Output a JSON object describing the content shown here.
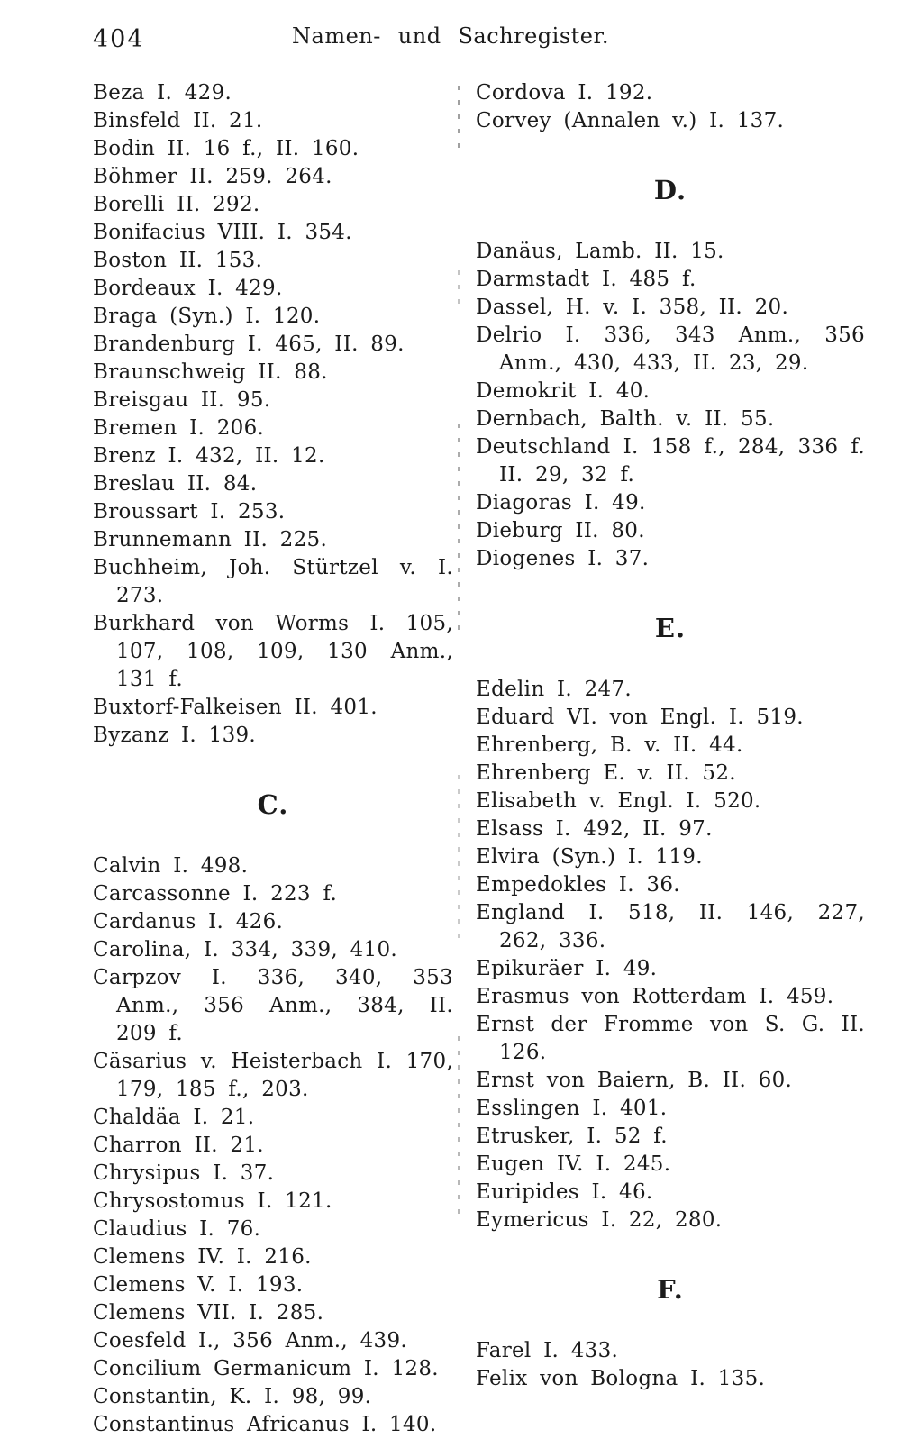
{
  "page": {
    "number": "404",
    "running_head": "Namen- und Sachregister."
  },
  "left_column": {
    "sections": [
      {
        "heading": null,
        "entries": [
          "Beza I. 429.",
          "Binsfeld II. 21.",
          "Bodin II. 16 f., II. 160.",
          "Böhmer II. 259. 264.",
          "Borelli II. 292.",
          "Bonifacius VIII. I. 354.",
          "Boston II. 153.",
          "Bordeaux I. 429.",
          "Braga (Syn.) I. 120.",
          "Brandenburg I. 465, II. 89.",
          "Braunschweig II. 88.",
          "Breisgau II. 95.",
          "Bremen I. 206.",
          "Brenz I. 432, II. 12.",
          "Breslau II. 84.",
          "Broussart I. 253.",
          "Brunnemann II. 225.",
          "Buchheim, Joh. Stürtzel v. I. 273.",
          "Burkhard von Worms I. 105, 107, 108, 109, 130 Anm., 131 f.",
          "Buxtorf-Falkeisen II. 401.",
          "Byzanz I. 139."
        ]
      },
      {
        "heading": "C.",
        "entries": [
          "Calvin I. 498.",
          "Carcassonne I. 223 f.",
          "Cardanus I. 426.",
          "Carolina, I. 334, 339, 410.",
          "Carpzov I. 336, 340, 353 Anm., 356 Anm., 384, II. 209 f.",
          "Cäsarius v. Heisterbach I. 170, 179, 185 f., 203.",
          "Chaldäa I. 21.",
          "Charron II. 21.",
          "Chrysipus I. 37.",
          "Chrysostomus I. 121.",
          "Claudius I. 76.",
          "Clemens IV. I. 216.",
          "Clemens V. I. 193.",
          "Clemens VII. I. 285.",
          "Coesfeld I., 356 Anm., 439.",
          "Concilium Germanicum I. 128.",
          "Constantin, K. I. 98, 99.",
          "Constantinus Africanus I. 140."
        ]
      }
    ]
  },
  "right_column": {
    "sections": [
      {
        "heading": null,
        "entries": [
          "Cordova I. 192.",
          "Corvey (Annalen v.) I. 137."
        ]
      },
      {
        "heading": "D.",
        "entries": [
          "Danäus, Lamb. II. 15.",
          "Darmstadt I. 485 f.",
          "Dassel, H. v. I. 358, II. 20.",
          "Delrio I. 336, 343 Anm., 356 Anm., 430, 433, II. 23, 29.",
          "Demokrit I. 40.",
          "Dernbach, Balth. v. II. 55.",
          "Deutschland I. 158 f., 284, 336 f. II. 29, 32 f.",
          "Diagoras I. 49.",
          "Dieburg II. 80.",
          "Diogenes I. 37."
        ]
      },
      {
        "heading": "E.",
        "entries": [
          "Edelin I. 247.",
          "Eduard VI. von Engl. I. 519.",
          "Ehrenberg, B. v. II. 44.",
          "Ehrenberg E. v. II. 52.",
          "Elisabeth v. Engl. I. 520.",
          "Elsass I. 492, II. 97.",
          "Elvira (Syn.) I. 119.",
          "Empedokles I. 36.",
          "England I. 518, II. 146, 227, 262, 336.",
          "Epikuräer I. 49.",
          "Erasmus von Rotterdam I. 459.",
          "Ernst der Fromme von S. G. II. 126.",
          "Ernst von Baiern, B. II. 60.",
          "Esslingen I. 401.",
          "Etrusker, I. 52 f.",
          "Eugen IV. I. 245.",
          "Euripides I. 46.",
          "Eymericus I. 22, 280."
        ]
      },
      {
        "heading": "F.",
        "entries": [
          "Farel I. 433.",
          "Felix von Bologna I. 135."
        ]
      }
    ]
  }
}
